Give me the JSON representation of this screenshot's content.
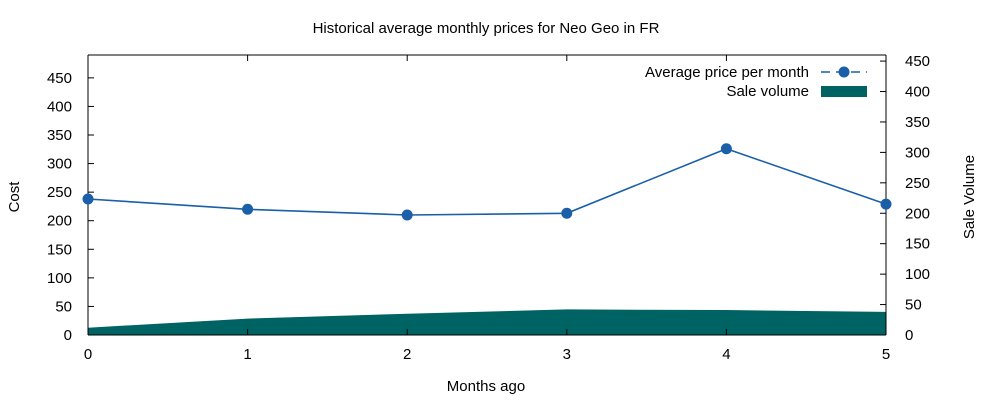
{
  "chart_data": {
    "type": "line",
    "title": "Historical average monthly prices for Neo Geo in FR",
    "xlabel": "Months ago",
    "ylabel": "Cost",
    "y2label": "Sale Volume",
    "xlim": [
      0,
      5
    ],
    "ylim": [
      0,
      490
    ],
    "y2lim": [
      0,
      460
    ],
    "x_ticks": [
      0,
      1,
      2,
      3,
      4,
      5
    ],
    "y_ticks": [
      0,
      50,
      100,
      150,
      200,
      250,
      300,
      350,
      400,
      450
    ],
    "y2_ticks": [
      0,
      50,
      100,
      150,
      200,
      250,
      300,
      350,
      400,
      450
    ],
    "grid": false,
    "legend_position": "top-right",
    "series": [
      {
        "name": "Average price per month",
        "kind": "line",
        "axis": "y",
        "color": "#1a5fa8",
        "x": [
          0,
          1,
          2,
          3,
          4,
          5
        ],
        "values": [
          238,
          220,
          210,
          213,
          326,
          229
        ]
      },
      {
        "name": "Sale volume",
        "kind": "area",
        "axis": "y2",
        "color": "#006363",
        "x": [
          0,
          1,
          2,
          3,
          4,
          5
        ],
        "values": [
          12,
          27,
          35,
          42,
          41,
          38
        ]
      }
    ]
  }
}
